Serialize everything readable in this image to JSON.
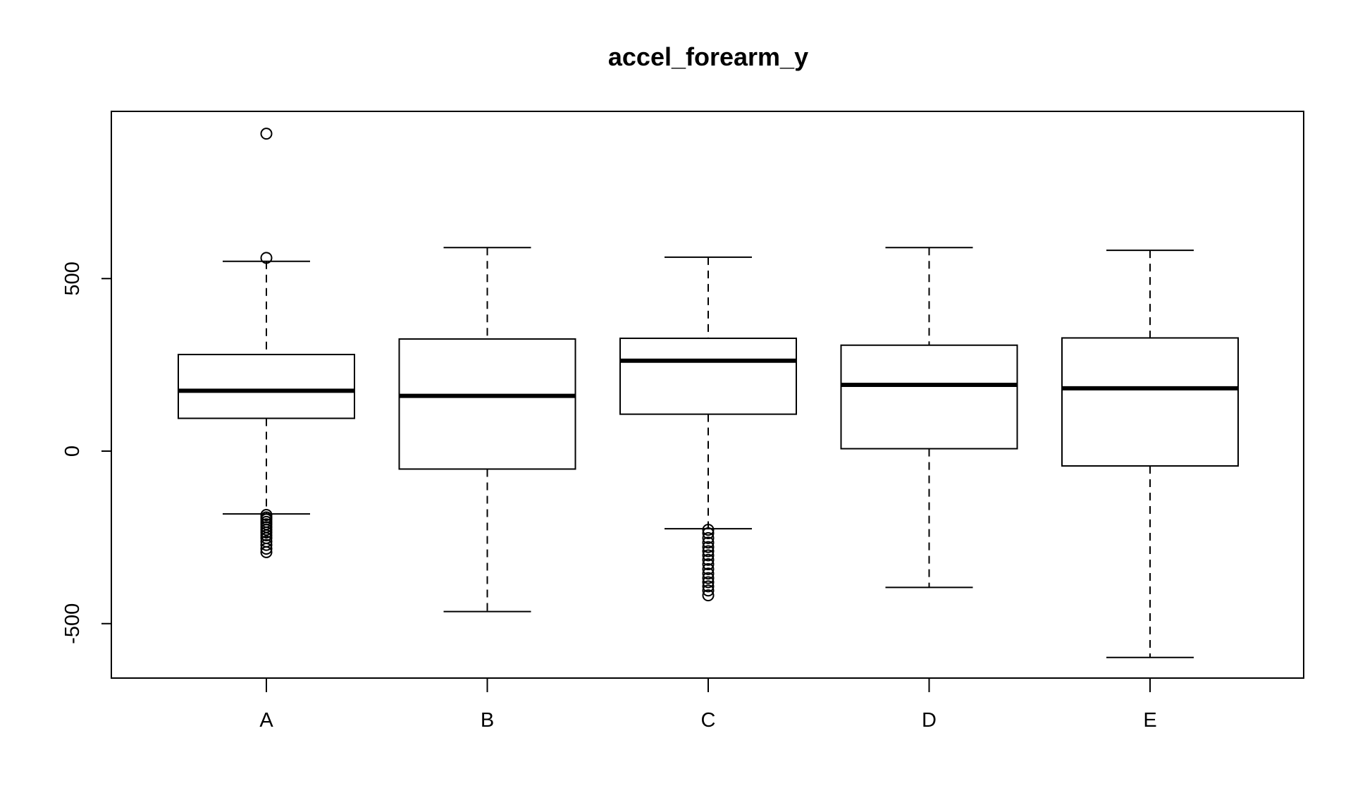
{
  "chart_data": {
    "type": "boxplot",
    "title": "accel_forearm_y",
    "xlabel": "",
    "ylabel": "",
    "categories": [
      "A",
      "B",
      "C",
      "D",
      "E"
    ],
    "y_ticks": [
      -500,
      0,
      500
    ],
    "y_tick_labels": [
      "-500",
      "0",
      "500"
    ],
    "ylim": [
      -655,
      990
    ],
    "grid": false,
    "boxes": [
      {
        "label": "A",
        "whisker_low": -182,
        "q1": 95,
        "median": 175,
        "q3": 280,
        "whisker_high": 550,
        "outliers": [
          920,
          560,
          -185,
          -192,
          -198,
          -205,
          -212,
          -220,
          -228,
          -236,
          -244,
          -252,
          -262,
          -272,
          -283,
          -293
        ]
      },
      {
        "label": "B",
        "whisker_low": -465,
        "q1": -52,
        "median": 160,
        "q3": 325,
        "whisker_high": 590,
        "outliers": []
      },
      {
        "label": "C",
        "whisker_low": -225,
        "q1": 107,
        "median": 262,
        "q3": 327,
        "whisker_high": 562,
        "outliers": [
          -228,
          -238,
          -252,
          -265,
          -278,
          -290,
          -302,
          -315,
          -328,
          -342,
          -355,
          -368,
          -380,
          -392,
          -404,
          -418
        ]
      },
      {
        "label": "D",
        "whisker_low": -395,
        "q1": 7,
        "median": 192,
        "q3": 307,
        "whisker_high": 590,
        "outliers": []
      },
      {
        "label": "E",
        "whisker_low": -598,
        "q1": -43,
        "median": 182,
        "q3": 328,
        "whisker_high": 582,
        "outliers": []
      }
    ]
  }
}
